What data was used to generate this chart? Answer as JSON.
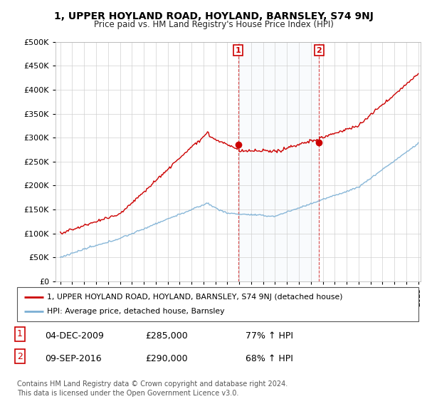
{
  "title": "1, UPPER HOYLAND ROAD, HOYLAND, BARNSLEY, S74 9NJ",
  "subtitle": "Price paid vs. HM Land Registry's House Price Index (HPI)",
  "legend_line1": "1, UPPER HOYLAND ROAD, HOYLAND, BARNSLEY, S74 9NJ (detached house)",
  "legend_line2": "HPI: Average price, detached house, Barnsley",
  "sale1_date": "04-DEC-2009",
  "sale1_price": 285000,
  "sale1_hpi": "77% ↑ HPI",
  "sale2_date": "09-SEP-2016",
  "sale2_price": 290000,
  "sale2_hpi": "68% ↑ HPI",
  "footer": "Contains HM Land Registry data © Crown copyright and database right 2024.\nThis data is licensed under the Open Government Licence v3.0.",
  "house_color": "#cc0000",
  "hpi_color": "#7bafd4",
  "ylim": [
    0,
    500000
  ],
  "yticks": [
    0,
    50000,
    100000,
    150000,
    200000,
    250000,
    300000,
    350000,
    400000,
    450000,
    500000
  ],
  "sale1_x": 2009.92,
  "sale2_x": 2016.69,
  "xmin": 1995.0,
  "xmax": 2025.0,
  "background_color": "#ffffff"
}
